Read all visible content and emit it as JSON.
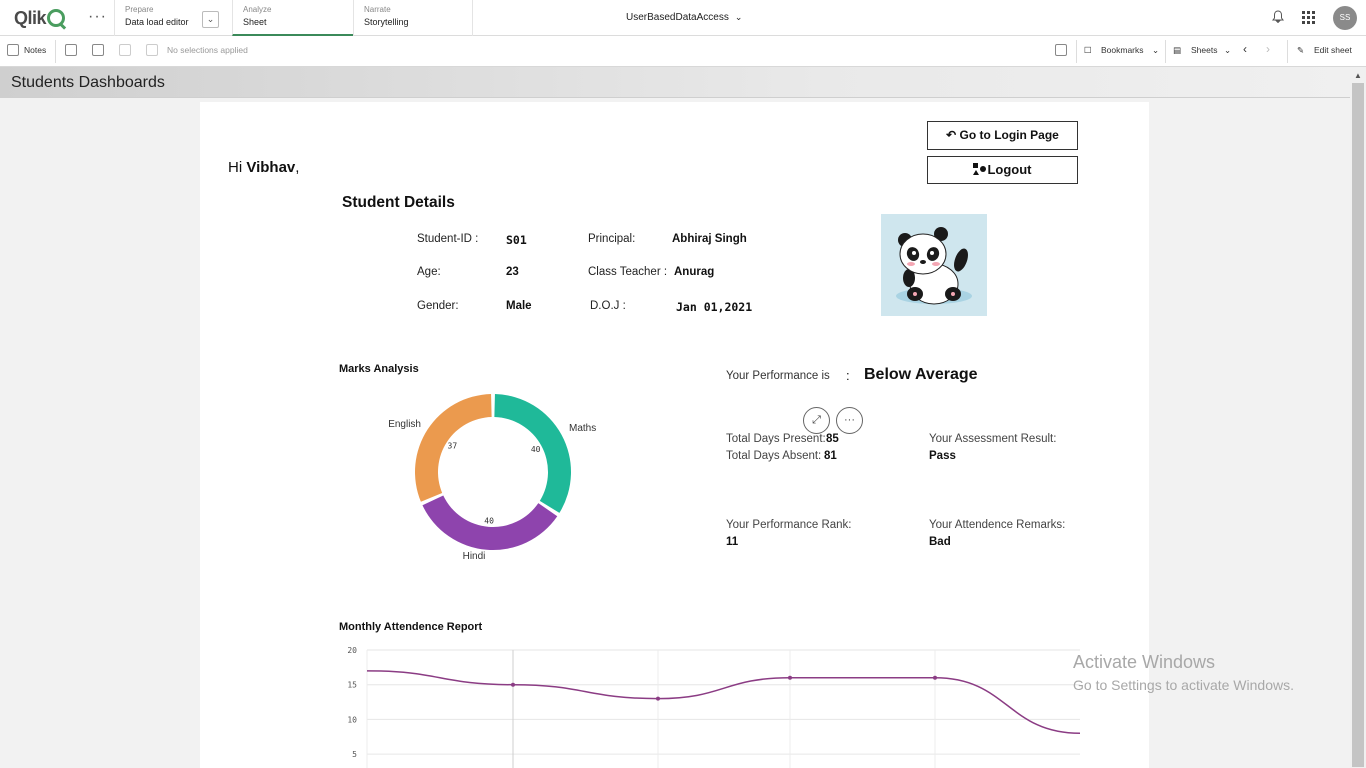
{
  "topbar": {
    "logo": "Qlik",
    "prepare": {
      "small": "Prepare",
      "big": "Data load editor"
    },
    "analyze": {
      "small": "Analyze",
      "big": "Sheet"
    },
    "narrate": {
      "small": "Narrate",
      "big": "Storytelling"
    },
    "app_title": "UserBasedDataAccess",
    "avatar": "SS"
  },
  "toolbar": {
    "notes": "Notes",
    "selections": "No selections applied",
    "bookmarks": "Bookmarks",
    "sheets": "Sheets",
    "edit_sheet": "Edit sheet"
  },
  "sheet": {
    "title": "Students Dashboards"
  },
  "buttons": {
    "login": "Go to Login Page",
    "logout": "Logout"
  },
  "greeting": {
    "prefix": "Hi ",
    "name": "Vibhav",
    "suffix": ","
  },
  "student": {
    "title": "Student Details",
    "id_label": "Student-ID :",
    "id": "S01",
    "age_label": "Age:",
    "age": "23",
    "gender_label": "Gender:",
    "gender": "Male",
    "principal_label": "Principal:",
    "principal": "Abhiraj Singh",
    "teacher_label": "Class Teacher :",
    "teacher": "Anurag",
    "doj_label": "D.O.J  :",
    "doj": "Jan 01,2021"
  },
  "marks": {
    "title": "Marks Analysis"
  },
  "performance": {
    "label": "Your Performance is",
    "colon": ":",
    "value": "Below Average",
    "days_present_label": "Total Days Present:",
    "days_present": "85",
    "days_absent_label": "Total Days Absent:",
    "days_absent": "81",
    "assessment_label": "Your Assessment Result:",
    "assessment": "Pass",
    "rank_label": "Your Performance Rank:",
    "rank": "11",
    "remarks_label": "Your Attendence Remarks:",
    "remarks": "Bad"
  },
  "attendance": {
    "title": "Monthly Attendence Report"
  },
  "watermark": {
    "line1": "Activate Windows",
    "line2": "Go to Settings to activate Windows."
  },
  "colors": {
    "english": "#eb9a4e",
    "maths": "#1fb999",
    "hindi": "#8e44ad",
    "line": "#8b3c84"
  },
  "chart_data": [
    {
      "type": "pie",
      "title": "Marks Analysis",
      "categories": [
        "Maths",
        "Hindi",
        "English"
      ],
      "values": [
        40,
        40,
        37
      ]
    },
    {
      "type": "line",
      "title": "Monthly Attendence Report",
      "series": [
        {
          "name": "Attendance",
          "values": [
            17,
            15,
            13,
            16,
            16,
            8
          ]
        }
      ],
      "yticks": [
        "20",
        "15",
        "10",
        "5"
      ],
      "ylim": [
        3,
        20
      ]
    }
  ]
}
